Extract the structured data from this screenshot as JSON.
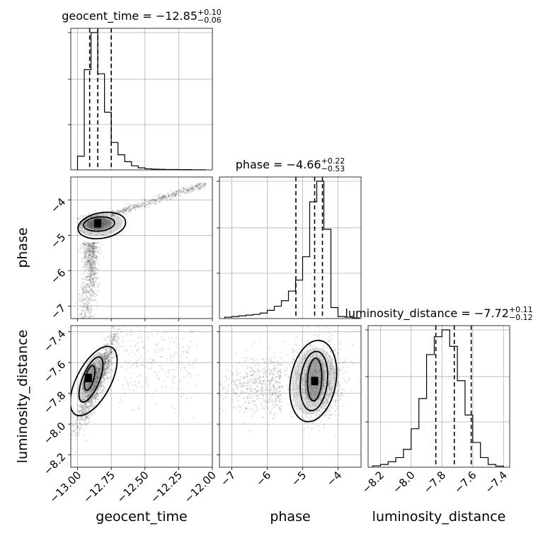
{
  "chart_data": {
    "type": "corner",
    "parameters": [
      "geocent_time",
      "phase",
      "luminosity_distance"
    ],
    "titles": [
      {
        "param": "geocent_time",
        "lhs": "geocent_time = ",
        "median": "−12.85",
        "plus": "+0.10",
        "minus": "−0.06"
      },
      {
        "param": "phase",
        "lhs": "phase = ",
        "median": "−4.66",
        "plus": "+0.22",
        "minus": "−0.53"
      },
      {
        "param": "luminosity_distance",
        "lhs": "luminosity_distance = ",
        "median": "−7.72",
        "plus": "+0.11",
        "minus": "−0.12"
      }
    ],
    "ranges": {
      "geocent_time": [
        -13.05,
        -12.0
      ],
      "phase": [
        -7.35,
        -3.35
      ],
      "luminosity_distance": [
        -8.28,
        -7.36
      ]
    },
    "ticks": {
      "geocent_time": {
        "values": [
          -13.0,
          -12.75,
          -12.5,
          -12.25,
          -12.0
        ],
        "labels": [
          "−13.00",
          "−12.75",
          "−12.50",
          "−12.25",
          "−12.00"
        ]
      },
      "phase": {
        "values": [
          -7,
          -6,
          -5,
          -4
        ],
        "labels": [
          "−7",
          "−6",
          "−5",
          "−4"
        ]
      },
      "luminosity_distance": {
        "values": [
          -8.2,
          -8.0,
          -7.8,
          -7.6,
          -7.4
        ],
        "labels": [
          "−8.2",
          "−8.0",
          "−7.8",
          "−7.6",
          "−7.4"
        ]
      }
    },
    "axis_labels": {
      "geocent_time": "geocent_time",
      "phase": "phase",
      "luminosity_distance": "luminosity_distance"
    },
    "histograms": {
      "geocent_time": {
        "edges": [
          -13.0,
          -12.95,
          -12.9,
          -12.85,
          -12.8,
          -12.75,
          -12.7,
          -12.65,
          -12.6,
          -12.55,
          -12.5,
          -12.45,
          -12.4,
          -12.35,
          -12.3,
          -12.25,
          -12.2,
          -12.15,
          -12.1,
          -12.05
        ],
        "values": [
          0.1,
          0.73,
          1.0,
          0.7,
          0.42,
          0.2,
          0.11,
          0.06,
          0.03,
          0.015,
          0.008,
          0.005,
          0.004,
          0.003,
          0.003,
          0.002,
          0.002,
          0.001,
          0.001
        ]
      },
      "phase": {
        "edges": [
          -7.2,
          -7.0,
          -6.8,
          -6.6,
          -6.4,
          -6.2,
          -6.0,
          -5.8,
          -5.6,
          -5.4,
          -5.2,
          -5.0,
          -4.8,
          -4.6,
          -4.4,
          -4.2,
          -4.0,
          -3.8,
          -3.6,
          -3.4
        ],
        "values": [
          0.01,
          0.015,
          0.02,
          0.025,
          0.03,
          0.04,
          0.06,
          0.09,
          0.13,
          0.2,
          0.28,
          0.45,
          0.85,
          1.0,
          0.65,
          0.08,
          0.015,
          0.01,
          0.005
        ]
      },
      "luminosity_distance": {
        "edges": [
          -8.25,
          -8.2,
          -8.15,
          -8.1,
          -8.05,
          -8.0,
          -7.95,
          -7.9,
          -7.85,
          -7.8,
          -7.75,
          -7.7,
          -7.65,
          -7.6,
          -7.55,
          -7.5,
          -7.45,
          -7.4
        ],
        "values": [
          0.01,
          0.02,
          0.04,
          0.07,
          0.13,
          0.28,
          0.5,
          0.82,
          0.95,
          1.0,
          0.88,
          0.63,
          0.38,
          0.18,
          0.07,
          0.02,
          0.008
        ]
      }
    },
    "quantiles": {
      "geocent_time": [
        -12.91,
        -12.85,
        -12.75
      ],
      "phase": [
        -5.19,
        -4.66,
        -4.44
      ],
      "luminosity_distance": [
        -7.84,
        -7.72,
        -7.61
      ]
    },
    "density_peaks": [
      {
        "x": "geocent_time",
        "y": "phase",
        "center": [
          -12.85,
          -4.66
        ]
      },
      {
        "x": "geocent_time",
        "y": "luminosity_distance",
        "center": [
          -12.92,
          -7.7
        ]
      },
      {
        "x": "phase",
        "y": "luminosity_distance",
        "center": [
          -4.66,
          -7.72
        ]
      }
    ],
    "grid": true
  }
}
